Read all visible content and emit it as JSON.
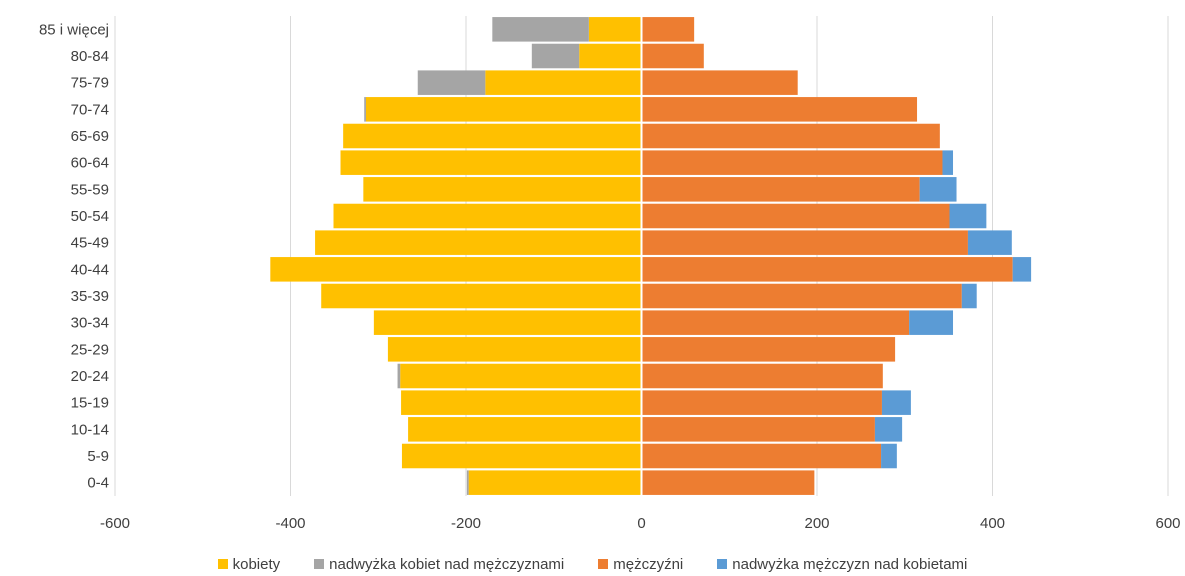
{
  "chart_data": {
    "type": "bar",
    "orientation": "horizontal",
    "stacked": true,
    "categories": [
      "0-4",
      "5-9",
      "10-14",
      "15-19",
      "20-24",
      "25-29",
      "30-34",
      "35-39",
      "40-44",
      "45-49",
      "50-54",
      "55-59",
      "60-64",
      "65-69",
      "70-74",
      "75-79",
      "80-84",
      "85 i więcej"
    ],
    "series": [
      {
        "name": "kobiety",
        "color": "#FFC000",
        "values": [
          -197,
          -273,
          -266,
          -274,
          -275,
          -289,
          -305,
          -365,
          -423,
          -372,
          -351,
          -317,
          -343,
          -340,
          -314,
          -178,
          -71,
          -60
        ]
      },
      {
        "name": "nadwyżka kobiet nad mężczyznami",
        "color": "#A5A5A5",
        "values": [
          -2,
          0,
          0,
          0,
          -3,
          0,
          0,
          0,
          0,
          0,
          0,
          0,
          0,
          0,
          -2,
          -77,
          -54,
          -110
        ]
      },
      {
        "name": "mężczyźni",
        "color": "#ED7D31",
        "values": [
          197,
          273,
          266,
          274,
          275,
          289,
          305,
          365,
          423,
          372,
          351,
          317,
          343,
          340,
          314,
          178,
          71,
          60
        ]
      },
      {
        "name": "nadwyżka mężczyzn nad kobietami",
        "color": "#5B9BD5",
        "values": [
          0,
          18,
          31,
          33,
          0,
          0,
          50,
          17,
          21,
          50,
          42,
          42,
          12,
          0,
          0,
          0,
          0,
          0
        ]
      }
    ],
    "xlim": [
      -600,
      600
    ],
    "x_ticks": [
      -600,
      -400,
      -200,
      0,
      200,
      400,
      600
    ],
    "x_tick_labels": [
      "-600",
      "-400",
      "-200",
      "0",
      "200",
      "400",
      "600"
    ],
    "grid": "vertical",
    "legend_position": "bottom",
    "title": "",
    "xlabel": "",
    "ylabel": ""
  }
}
